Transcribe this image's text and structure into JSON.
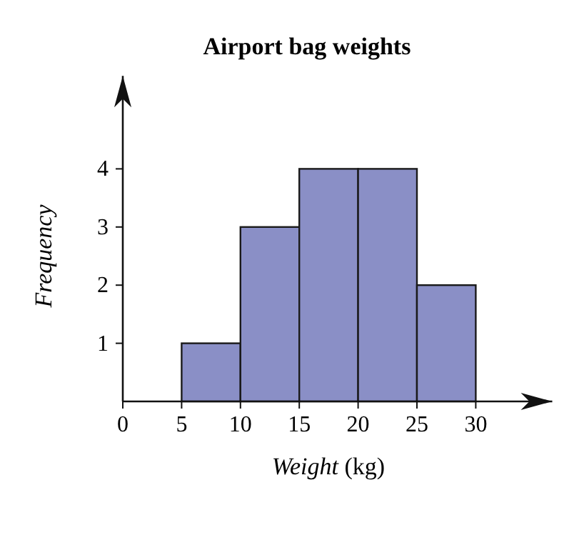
{
  "chart_data": {
    "type": "histogram",
    "title": "Airport bag weights",
    "xlabel": "Weight (kg)",
    "ylabel": "Frequency",
    "bins": [
      5,
      10,
      15,
      20,
      25,
      30
    ],
    "values": [
      1,
      3,
      4,
      4,
      2
    ],
    "color": "#8a8fc6",
    "xlim": [
      0,
      36.5
    ],
    "ylim": [
      0,
      5.6
    ],
    "xticks": [
      0,
      5,
      10,
      15,
      20,
      25,
      30
    ],
    "yticks": [
      1,
      2,
      3,
      4
    ],
    "grid": false
  }
}
